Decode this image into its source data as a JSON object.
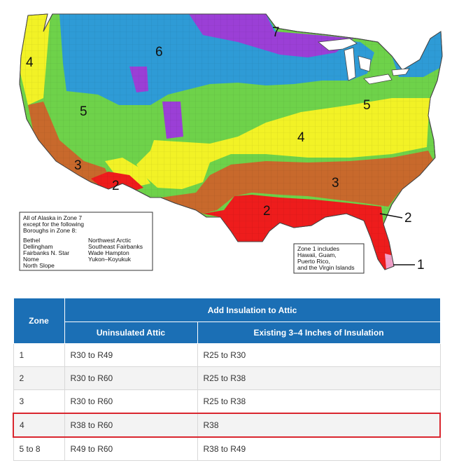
{
  "map": {
    "zone_labels": [
      "7",
      "6",
      "4",
      "5",
      "5",
      "4",
      "3",
      "3",
      "2",
      "2",
      "2",
      "1"
    ],
    "alaska_note": {
      "lines": [
        "All of Alaska in Zone 7",
        "except for the following",
        "Boroughs in Zone 8:"
      ],
      "boroughs_col1": [
        "Bethel",
        "Dellingham",
        "Fairbanks N. Star",
        "Nome",
        "North Slope"
      ],
      "boroughs_col2": [
        "Northwest Arctic",
        "Southeast Fairbanks",
        "Wade Hampton",
        "Yukon–Koyukuk"
      ]
    },
    "zone1_note": {
      "lines": [
        "Zone 1 includes",
        "Hawaii, Guam,",
        "Puerto Rico,",
        "and the Virgin Islands"
      ]
    },
    "zone_colors": {
      "zone1": "#f2a0c8",
      "zone2": "#ee1c1c",
      "zone3": "#c8692c",
      "zone4": "#f2f226",
      "zone5": "#6ed24a",
      "zone6": "#2e9bd6",
      "zone7": "#9b3fd6"
    }
  },
  "table": {
    "header": {
      "zone": "Zone",
      "group": "Add Insulation to Attic",
      "col1": "Uninsulated Attic",
      "col2": "Existing 3–4 Inches of Insulation"
    },
    "rows": [
      {
        "zone": "1",
        "uninsulated": "R30 to R49",
        "existing": "R25 to R30"
      },
      {
        "zone": "2",
        "uninsulated": "R30 to R60",
        "existing": "R25 to R38"
      },
      {
        "zone": "3",
        "uninsulated": "R30 to R60",
        "existing": "R25 to R38"
      },
      {
        "zone": "4",
        "uninsulated": "R38 to R60",
        "existing": "R38"
      },
      {
        "zone": "5 to 8",
        "uninsulated": "R49 to R60",
        "existing": "R38 to R49"
      }
    ],
    "highlighted_zone": "4",
    "header_color": "#1b6fb5",
    "highlight_color": "#d9262e"
  }
}
